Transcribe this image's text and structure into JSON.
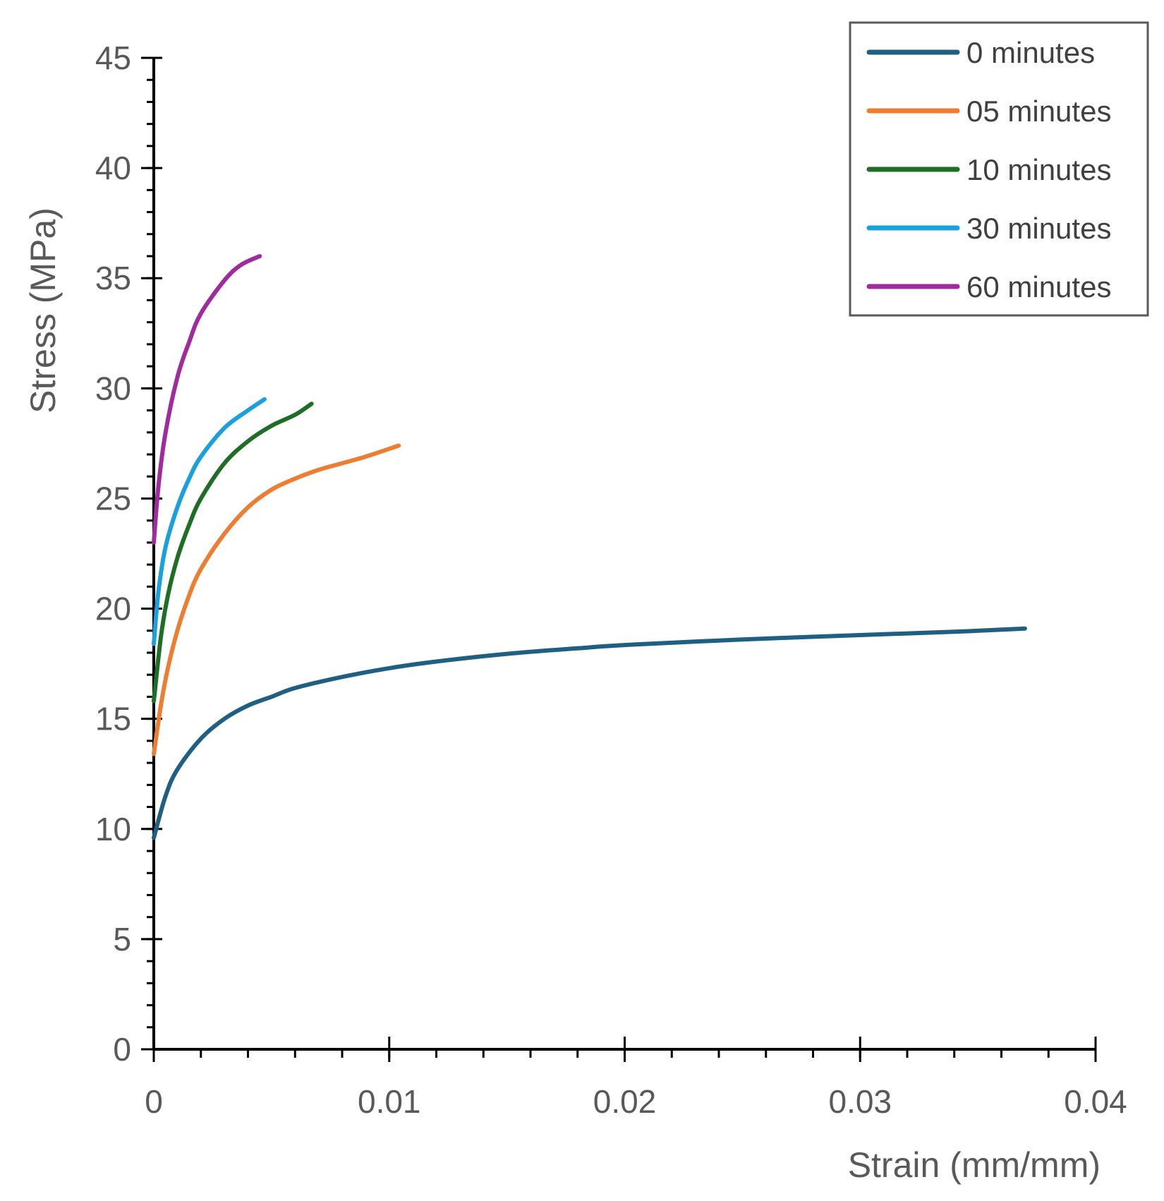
{
  "chart_data": {
    "type": "line",
    "xlabel": "Strain (mm/mm)",
    "ylabel": "Stress (MPa)",
    "xlim": [
      0,
      0.04
    ],
    "ylim": [
      0,
      45
    ],
    "x_ticks": [
      0,
      0.01,
      0.02,
      0.03,
      0.04
    ],
    "x_tick_labels": [
      "0",
      "0.01",
      "0.02",
      "0.03",
      "0.04"
    ],
    "y_ticks": [
      0,
      5,
      10,
      15,
      20,
      25,
      30,
      35,
      40,
      45
    ],
    "y_tick_labels": [
      "0",
      "5",
      "10",
      "15",
      "20",
      "25",
      "30",
      "35",
      "40",
      "45"
    ],
    "x_minor_step": 0.002,
    "y_minor_step": 1,
    "grid": false,
    "legend_position": "top-right",
    "series": [
      {
        "name": "0 minutes",
        "color": "#1F5F82",
        "points": [
          [
            0,
            9.6
          ],
          [
            0.0005,
            11.5
          ],
          [
            0.001,
            12.7
          ],
          [
            0.002,
            14.1
          ],
          [
            0.003,
            15.0
          ],
          [
            0.004,
            15.6
          ],
          [
            0.005,
            16.0
          ],
          [
            0.006,
            16.4
          ],
          [
            0.008,
            16.9
          ],
          [
            0.01,
            17.3
          ],
          [
            0.012,
            17.6
          ],
          [
            0.015,
            17.95
          ],
          [
            0.018,
            18.2
          ],
          [
            0.02,
            18.35
          ],
          [
            0.025,
            18.6
          ],
          [
            0.03,
            18.8
          ],
          [
            0.034,
            18.95
          ],
          [
            0.037,
            19.1
          ]
        ]
      },
      {
        "name": "05 minutes",
        "color": "#ED7D31",
        "points": [
          [
            0,
            13.4
          ],
          [
            0.0003,
            15.6
          ],
          [
            0.0006,
            17.3
          ],
          [
            0.001,
            19.0
          ],
          [
            0.0015,
            20.6
          ],
          [
            0.002,
            21.8
          ],
          [
            0.003,
            23.4
          ],
          [
            0.004,
            24.6
          ],
          [
            0.005,
            25.4
          ],
          [
            0.006,
            25.9
          ],
          [
            0.007,
            26.3
          ],
          [
            0.008,
            26.6
          ],
          [
            0.009,
            26.9
          ],
          [
            0.0104,
            27.4
          ]
        ]
      },
      {
        "name": "10 minutes",
        "color": "#1E6E25",
        "points": [
          [
            0,
            15.8
          ],
          [
            0.0003,
            18.7
          ],
          [
            0.0006,
            20.6
          ],
          [
            0.001,
            22.3
          ],
          [
            0.0015,
            23.8
          ],
          [
            0.002,
            25.0
          ],
          [
            0.003,
            26.6
          ],
          [
            0.004,
            27.6
          ],
          [
            0.005,
            28.3
          ],
          [
            0.006,
            28.8
          ],
          [
            0.0067,
            29.3
          ]
        ]
      },
      {
        "name": "30 minutes",
        "color": "#1AA0DC",
        "points": [
          [
            0,
            18.4
          ],
          [
            0.0002,
            20.8
          ],
          [
            0.0005,
            22.8
          ],
          [
            0.001,
            24.6
          ],
          [
            0.0015,
            25.9
          ],
          [
            0.002,
            26.9
          ],
          [
            0.003,
            28.2
          ],
          [
            0.004,
            29.0
          ],
          [
            0.0047,
            29.5
          ]
        ]
      },
      {
        "name": "60 minutes",
        "color": "#A02B9F",
        "points": [
          [
            0,
            23.0
          ],
          [
            0.0002,
            25.6
          ],
          [
            0.0005,
            28.0
          ],
          [
            0.001,
            30.5
          ],
          [
            0.0015,
            32.1
          ],
          [
            0.002,
            33.4
          ],
          [
            0.003,
            34.9
          ],
          [
            0.0037,
            35.6
          ],
          [
            0.0045,
            36.0
          ]
        ]
      }
    ]
  }
}
